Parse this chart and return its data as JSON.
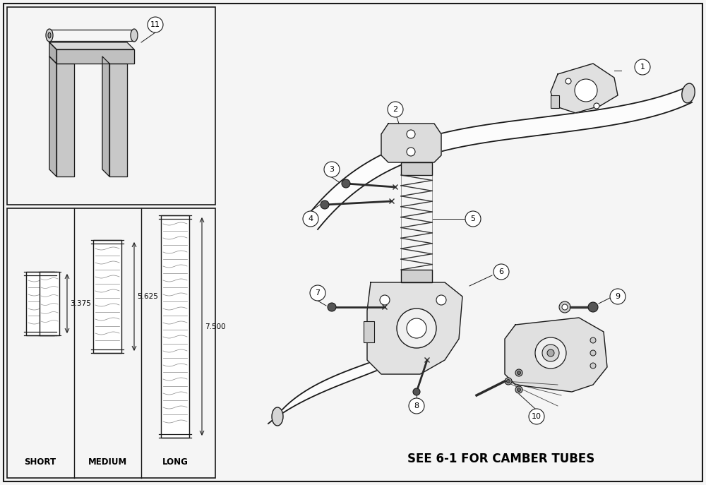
{
  "background_color": "#f5f5f5",
  "border_color": "#000000",
  "bottom_text": "SEE 6-1 FOR CAMBER TUBES",
  "short_label": "SHORT",
  "medium_label": "MEDIUM",
  "long_label": "LONG",
  "short_dim": "3.375",
  "medium_dim": "5.625",
  "long_dim": "7.500",
  "fig_width": 10.0,
  "fig_height": 6.87
}
